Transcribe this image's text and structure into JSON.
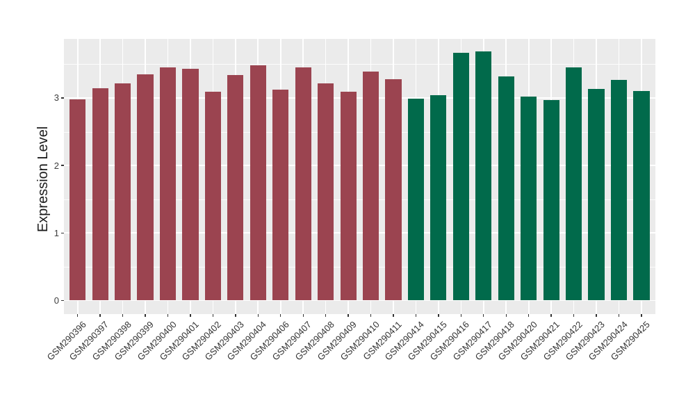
{
  "chart_data": {
    "type": "bar",
    "title": "",
    "xlabel": "",
    "ylabel": "Expression Level",
    "categories": [
      "GSM290396",
      "GSM290397",
      "GSM290398",
      "GSM290399",
      "GSM290400",
      "GSM290401",
      "GSM290402",
      "GSM290403",
      "GSM290404",
      "GSM290406",
      "GSM290407",
      "GSM290408",
      "GSM290409",
      "GSM290410",
      "GSM290411",
      "GSM290414",
      "GSM290415",
      "GSM290416",
      "GSM290417",
      "GSM290418",
      "GSM290420",
      "GSM290421",
      "GSM290422",
      "GSM290423",
      "GSM290424",
      "GSM290425"
    ],
    "values": [
      2.98,
      3.14,
      3.21,
      3.35,
      3.45,
      3.43,
      3.09,
      3.34,
      3.48,
      3.12,
      3.45,
      3.21,
      3.09,
      3.39,
      3.28,
      2.99,
      3.04,
      3.67,
      3.69,
      3.32,
      3.02,
      2.97,
      3.45,
      3.13,
      3.27,
      3.1
    ],
    "groups": [
      "groupA",
      "groupA",
      "groupA",
      "groupA",
      "groupA",
      "groupA",
      "groupA",
      "groupA",
      "groupA",
      "groupA",
      "groupA",
      "groupA",
      "groupA",
      "groupA",
      "groupA",
      "groupB",
      "groupB",
      "groupB",
      "groupB",
      "groupB",
      "groupB",
      "groupB",
      "groupB",
      "groupB",
      "groupB",
      "groupB"
    ],
    "group_colors": {
      "groupA": "#9B4450",
      "groupB": "#016A4B"
    },
    "y_ticks": [
      0,
      1,
      2,
      3
    ],
    "y_tick_labels": [
      "0",
      "1",
      "2",
      "3"
    ],
    "ylim": [
      0,
      3.87
    ],
    "minor_gridline_step": 0.5,
    "grid": true,
    "legend_position": "none",
    "panel_background": "#EBEBEB",
    "gridline_color": "#FFFFFF",
    "x_label_rotation_deg": 45
  }
}
